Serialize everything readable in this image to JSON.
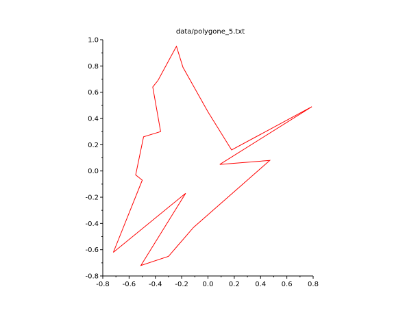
{
  "colors": {
    "background": "#ffffff",
    "axis": "#000000",
    "series_line": "#ff0000"
  },
  "chart_data": {
    "type": "line",
    "title": "data/polygone_5.txt",
    "xlabel": "",
    "ylabel": "",
    "xlim": [
      -0.8,
      0.8
    ],
    "ylim": [
      -0.8,
      1.0
    ],
    "grid": false,
    "legend": "none",
    "x_ticks": [
      -0.8,
      -0.6,
      -0.4,
      -0.2,
      0.0,
      0.2,
      0.4,
      0.6,
      0.8
    ],
    "x_tick_labels": [
      "-0.8",
      "-0.6",
      "-0.4",
      "-0.2",
      "0.0",
      "0.2",
      "0.4",
      "0.6",
      "0.8"
    ],
    "y_ticks": [
      -0.8,
      -0.6,
      -0.4,
      -0.2,
      0.0,
      0.2,
      0.4,
      0.6,
      0.8,
      1.0
    ],
    "y_tick_labels": [
      "-0.8",
      "-0.6",
      "-0.4",
      "-0.2",
      "0.0",
      "0.2",
      "0.4",
      "0.6",
      "0.8",
      "1.0"
    ],
    "series": [
      {
        "closed": true,
        "points": [
          [
            -0.24,
            0.95
          ],
          [
            -0.19,
            0.79
          ],
          [
            0.0,
            0.45
          ],
          [
            0.18,
            0.16
          ],
          [
            0.79,
            0.49
          ],
          [
            0.09,
            0.05
          ],
          [
            0.47,
            0.08
          ],
          [
            -0.11,
            -0.43
          ],
          [
            -0.3,
            -0.65
          ],
          [
            -0.51,
            -0.72
          ],
          [
            -0.17,
            -0.17
          ],
          [
            -0.72,
            -0.62
          ],
          [
            -0.5,
            -0.07
          ],
          [
            -0.55,
            -0.03
          ],
          [
            -0.49,
            0.26
          ],
          [
            -0.36,
            0.3
          ],
          [
            -0.42,
            0.64
          ],
          [
            -0.38,
            0.69
          ]
        ]
      }
    ]
  }
}
